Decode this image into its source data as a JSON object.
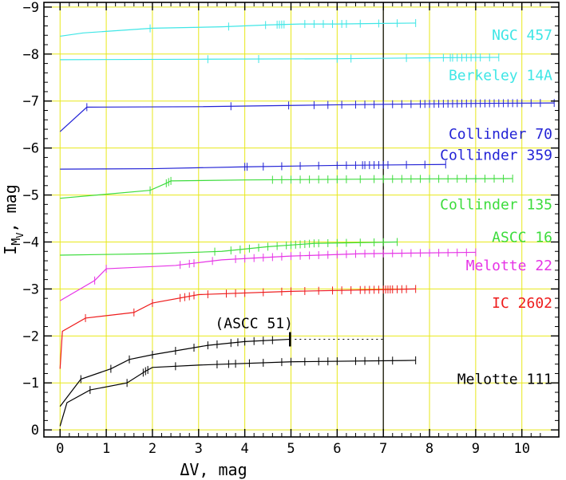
{
  "chart_data": {
    "type": "line",
    "title": "",
    "xlabel": "ΔV, mag",
    "ylabel": "I_MV, mag",
    "ylabel_main": "I",
    "ylabel_sub": "M",
    "ylabel_subsub": "V",
    "ylabel_rest": ", mag",
    "xlim": [
      -0.35,
      10.8
    ],
    "ylim": [
      0.15,
      -9.1
    ],
    "xticks": [
      0,
      1,
      2,
      3,
      4,
      5,
      6,
      7,
      8,
      9,
      10
    ],
    "yticks": [
      0,
      -1,
      -2,
      -3,
      -4,
      -5,
      -6,
      -7,
      -8,
      -9
    ],
    "xtick_labels": [
      "0",
      "1",
      "2",
      "3",
      "4",
      "5",
      "6",
      "7",
      "8",
      "9",
      "10"
    ],
    "ytick_labels": [
      "0",
      "−1",
      "−2",
      "−3",
      "−4",
      "−5",
      "−6",
      "−7",
      "−8",
      "−9"
    ],
    "grid": true,
    "vertical_line_x": 7,
    "colors": {
      "cyan": "#3fe6e6",
      "blue": "#2323d6",
      "green": "#3ddc3d",
      "magenta": "#e634e6",
      "red": "#ee1c1c",
      "black": "#000000",
      "grid": "#e8e81a"
    },
    "series": [
      {
        "name": "NGC 457",
        "color": "#3fe6e6",
        "points": [
          [
            0,
            -8.38
          ],
          [
            0.5,
            -8.45
          ],
          [
            2,
            -8.55
          ],
          [
            3.5,
            -8.58
          ],
          [
            4.5,
            -8.62
          ],
          [
            5.2,
            -8.64
          ],
          [
            6,
            -8.64
          ],
          [
            6.8,
            -8.65
          ],
          [
            7.7,
            -8.66
          ]
        ],
        "ticks": [
          1.95,
          3.65,
          4.45,
          4.7,
          4.75,
          4.8,
          4.85,
          5.3,
          5.5,
          5.7,
          5.9,
          6.1,
          6.2,
          6.5,
          6.9,
          7.3,
          7.7
        ]
      },
      {
        "name": "Berkeley 14A",
        "color": "#3fe6e6",
        "points": [
          [
            0,
            -7.88
          ],
          [
            3,
            -7.89
          ],
          [
            6,
            -7.9
          ],
          [
            8,
            -7.92
          ],
          [
            9.5,
            -7.93
          ]
        ],
        "ticks": [
          3.2,
          4.3,
          6.0,
          6.3,
          7.5,
          8.0,
          8.3,
          8.45,
          8.5,
          8.6,
          8.7,
          8.8,
          8.9,
          9.0,
          9.1,
          9.3,
          9.5
        ]
      },
      {
        "name": "Collinder 70",
        "color": "#2323d6",
        "points": [
          [
            0,
            -6.35
          ],
          [
            0.58,
            -6.87
          ],
          [
            3,
            -6.88
          ],
          [
            6,
            -6.92
          ],
          [
            9,
            -6.95
          ],
          [
            10.7,
            -6.96
          ]
        ],
        "ticks": [
          0.58,
          3.7,
          4.95,
          5.5,
          5.8,
          6.1,
          6.4,
          6.6,
          6.8,
          7.0,
          7.2,
          7.4,
          7.6,
          7.8,
          7.9,
          8.0,
          8.1,
          8.2,
          8.3,
          8.4,
          8.5,
          8.6,
          8.7,
          8.8,
          8.9,
          9.0,
          9.1,
          9.2,
          9.3,
          9.4,
          9.5,
          9.6,
          9.7,
          9.8,
          9.9,
          10.0,
          10.2,
          10.4,
          10.7
        ]
      },
      {
        "name": "Collinder 359",
        "color": "#2323d6",
        "points": [
          [
            0,
            -5.55
          ],
          [
            2,
            -5.56
          ],
          [
            4,
            -5.6
          ],
          [
            6,
            -5.63
          ],
          [
            8.35,
            -5.65
          ]
        ],
        "ticks": [
          4.0,
          4.05,
          4.4,
          4.8,
          5.2,
          5.6,
          6.0,
          6.2,
          6.4,
          6.55,
          6.6,
          6.7,
          6.8,
          6.9,
          7.0,
          7.1,
          7.5,
          7.9,
          8.35
        ]
      },
      {
        "name": "Collinder 135",
        "color": "#3ddc3d",
        "points": [
          [
            0,
            -4.93
          ],
          [
            1.95,
            -5.1
          ],
          [
            2.3,
            -5.25
          ],
          [
            2.4,
            -5.3
          ],
          [
            4,
            -5.32
          ],
          [
            7,
            -5.34
          ],
          [
            9.8,
            -5.35
          ]
        ],
        "ticks": [
          1.95,
          2.3,
          2.35,
          2.4,
          4.6,
          4.8,
          5.0,
          5.2,
          5.4,
          5.6,
          5.8,
          6.0,
          6.2,
          6.5,
          6.8,
          7.0,
          7.2,
          7.4,
          7.6,
          7.8,
          8.0,
          8.2,
          8.4,
          8.6,
          8.8,
          9.0,
          9.2,
          9.4,
          9.6,
          9.8
        ]
      },
      {
        "name": "ASCC 16",
        "color": "#3ddc3d",
        "points": [
          [
            0,
            -3.72
          ],
          [
            2,
            -3.75
          ],
          [
            3.5,
            -3.8
          ],
          [
            4.5,
            -3.9
          ],
          [
            5.5,
            -3.97
          ],
          [
            7.3,
            -4.0
          ]
        ],
        "ticks": [
          3.35,
          3.7,
          3.9,
          4.1,
          4.3,
          4.5,
          4.7,
          4.9,
          5.0,
          5.1,
          5.2,
          5.3,
          5.4,
          5.5,
          5.6,
          5.8,
          6.0,
          6.2,
          6.5,
          6.8,
          7.0,
          7.3
        ]
      },
      {
        "name": "Melotte 22",
        "color": "#e634e6",
        "points": [
          [
            0,
            -2.75
          ],
          [
            0.75,
            -3.18
          ],
          [
            1.0,
            -3.43
          ],
          [
            2.5,
            -3.5
          ],
          [
            3.5,
            -3.62
          ],
          [
            5,
            -3.7
          ],
          [
            6.5,
            -3.75
          ],
          [
            9,
            -3.78
          ]
        ],
        "ticks": [
          0.75,
          1.0,
          2.6,
          2.8,
          2.9,
          3.3,
          3.8,
          4.0,
          4.2,
          4.4,
          4.6,
          4.8,
          5.0,
          5.2,
          5.4,
          5.6,
          5.8,
          6.0,
          6.2,
          6.4,
          6.6,
          6.8,
          7.0,
          7.2,
          7.4,
          7.6,
          7.8,
          8.0,
          8.2,
          8.4,
          8.6,
          8.8,
          9.0
        ]
      },
      {
        "name": "IC 2602",
        "color": "#ee1c1c",
        "points": [
          [
            0,
            -1.3
          ],
          [
            0.05,
            -2.1
          ],
          [
            0.55,
            -2.38
          ],
          [
            1.6,
            -2.5
          ],
          [
            2.0,
            -2.7
          ],
          [
            3,
            -2.88
          ],
          [
            5,
            -2.95
          ],
          [
            7.7,
            -3.0
          ]
        ],
        "ticks": [
          0.55,
          1.6,
          2.0,
          2.6,
          2.7,
          2.8,
          2.9,
          3.2,
          3.6,
          3.8,
          4.0,
          4.4,
          4.8,
          5.0,
          5.3,
          5.6,
          5.9,
          6.1,
          6.3,
          6.5,
          6.6,
          6.7,
          6.8,
          6.9,
          7.0,
          7.05,
          7.1,
          7.15,
          7.2,
          7.3,
          7.4,
          7.5,
          7.7
        ]
      },
      {
        "name": "ASCC 51",
        "color": "#000000",
        "points": [
          [
            0,
            -0.5
          ],
          [
            0.45,
            -1.08
          ],
          [
            1.1,
            -1.3
          ],
          [
            1.5,
            -1.5
          ],
          [
            2,
            -1.6
          ],
          [
            2.6,
            -1.7
          ],
          [
            3.2,
            -1.8
          ],
          [
            4,
            -1.88
          ],
          [
            5,
            -1.93
          ]
        ],
        "ticks": [
          0.45,
          1.1,
          1.5,
          2.0,
          2.5,
          2.9,
          3.2,
          3.4,
          3.7,
          3.85,
          4.0,
          4.2,
          4.4,
          4.6
        ],
        "end_x": 4.98,
        "dashed_to_x": 7.0
      },
      {
        "name": "Melotte 111",
        "color": "#000000",
        "points": [
          [
            0,
            -0.08
          ],
          [
            0.15,
            -0.58
          ],
          [
            0.65,
            -0.85
          ],
          [
            1.45,
            -1.0
          ],
          [
            1.85,
            -1.25
          ],
          [
            2.0,
            -1.33
          ],
          [
            3,
            -1.38
          ],
          [
            5,
            -1.45
          ],
          [
            7.7,
            -1.48
          ]
        ],
        "ticks": [
          0.65,
          1.45,
          1.8,
          1.85,
          1.9,
          2.5,
          3.4,
          3.65,
          3.8,
          4.1,
          4.4,
          4.8,
          5.0,
          5.3,
          5.6,
          5.8,
          6.0,
          6.4,
          6.6,
          6.9,
          7.2,
          7.7
        ]
      }
    ],
    "labels": [
      {
        "text": "NGC 457",
        "color": "#3fe6e6",
        "y": -8.4
      },
      {
        "text": "Berkeley 14A",
        "color": "#3fe6e6",
        "y": -7.55
      },
      {
        "text": "Collinder 70",
        "color": "#2323d6",
        "y": -6.3
      },
      {
        "text": "Collinder 359",
        "color": "#2323d6",
        "y": -5.85
      },
      {
        "text": "Collinder 135",
        "color": "#3ddc3d",
        "y": -4.8
      },
      {
        "text": "ASCC 16",
        "color": "#3ddc3d",
        "y": -4.1
      },
      {
        "text": "Melotte 22",
        "color": "#e634e6",
        "y": -3.5
      },
      {
        "text": "IC 2602",
        "color": "#ee1c1c",
        "y": -2.7
      },
      {
        "text": "(ASCC 51)",
        "color": "#000000",
        "y": -2.27
      },
      {
        "text": "Melotte 111",
        "color": "#000000",
        "y": -1.08
      }
    ]
  }
}
